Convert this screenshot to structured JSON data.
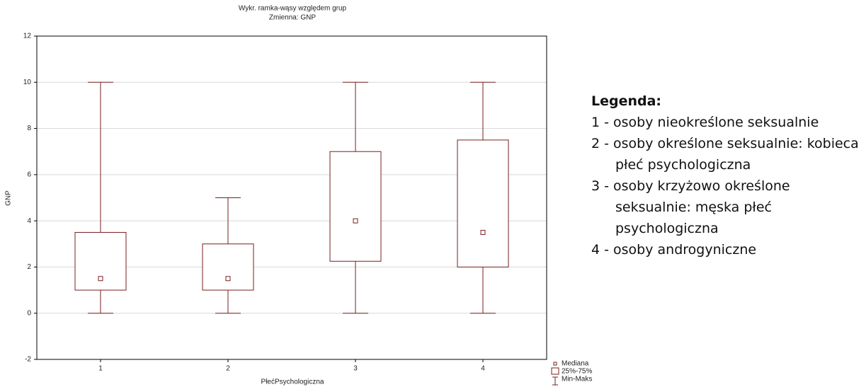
{
  "chart_data": {
    "type": "box",
    "title": "Wykr. ramka-wąsy względem grup",
    "subtitle": "Zmienna:  GNP",
    "x_label": "PłećPsychologiczna",
    "y_label": "GNP",
    "categories": [
      "1",
      "2",
      "3",
      "4"
    ],
    "boxes": [
      {
        "min": 0,
        "q1": 1,
        "median": 1.5,
        "q3": 3.5,
        "max": 10
      },
      {
        "min": 0,
        "q1": 1,
        "median": 1.5,
        "q3": 3,
        "max": 5
      },
      {
        "min": 0,
        "q1": 2.25,
        "median": 4,
        "q3": 7,
        "max": 10
      },
      {
        "min": 0,
        "q1": 2,
        "median": 3.5,
        "q3": 7.5,
        "max": 10
      }
    ],
    "color": "#7a1f1f",
    "ylim": [
      -2,
      12
    ],
    "yticks": [
      -2,
      0,
      2,
      4,
      6,
      8,
      10,
      12
    ],
    "grid": true,
    "legend": [
      "Mediana",
      "25%-75%",
      "Min-Maks"
    ],
    "side_legend": {
      "title": "Legenda:",
      "items": [
        "1 - osoby nieokreślone seksualnie",
        "2 - osoby określone seksualnie: kobieca płeć psychologiczna",
        "3 - osoby krzyżowo określone seksualnie: męska płeć psychologiczna",
        "4 - osoby androgyniczne"
      ]
    }
  }
}
